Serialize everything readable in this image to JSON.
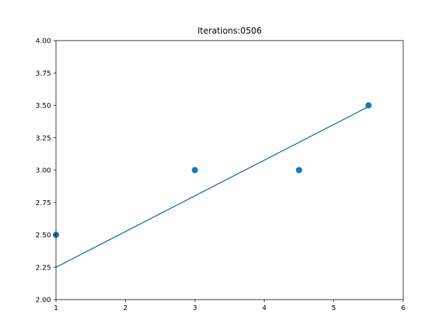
{
  "chart_data": {
    "type": "scatter",
    "title": "Iterations:0506",
    "xlabel": "",
    "ylabel": "",
    "xlim": [
      1,
      6
    ],
    "ylim": [
      2.0,
      4.0
    ],
    "x_ticks": [
      1,
      2,
      3,
      4,
      5,
      6
    ],
    "x_tick_labels": [
      "1",
      "2",
      "3",
      "4",
      "5",
      "6"
    ],
    "y_ticks": [
      2.0,
      2.25,
      2.5,
      2.75,
      3.0,
      3.25,
      3.5,
      3.75,
      4.0
    ],
    "y_tick_labels": [
      "2.00",
      "2.25",
      "2.50",
      "2.75",
      "3.00",
      "3.25",
      "3.50",
      "3.75",
      "4.00"
    ],
    "grid": false,
    "series": [
      {
        "type": "scatter",
        "x": [
          1,
          3,
          4.5,
          5.5
        ],
        "y": [
          2.5,
          3.0,
          3.0,
          3.5
        ],
        "color": "#1f77b4"
      },
      {
        "type": "line",
        "x": [
          1,
          5.5
        ],
        "y": [
          2.25,
          3.49
        ],
        "color": "#1f77b4"
      }
    ]
  }
}
